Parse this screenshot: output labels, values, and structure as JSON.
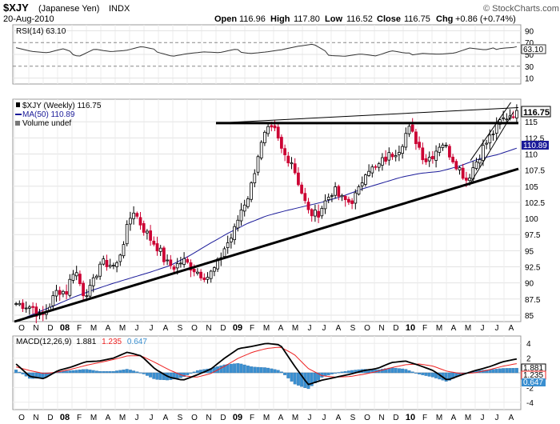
{
  "header": {
    "symbol": "$XJY",
    "name": "(Japanese Yen)",
    "exchange": "INDX",
    "date": "20-Aug-2010",
    "open_label": "Open",
    "open": "116.96",
    "high_label": "High",
    "high": "117.80",
    "low_label": "Low",
    "low": "116.52",
    "close_label": "Close",
    "close": "116.75",
    "chg_label": "Chg",
    "chg": "+0.86 (+0.74%)",
    "copyright": "© StockCharts.com"
  },
  "rsi_panel": {
    "label": "RSI(14) 63.10",
    "current_tag": "63.10",
    "ticks": [
      "90",
      "70",
      "50",
      "30",
      "10"
    ]
  },
  "price_panel": {
    "legend_price": "$XJY (Weekly) 116.75",
    "legend_ma": "MA(50) 110.89",
    "legend_volume": "Volume undef",
    "price_tag": "116.75",
    "ma_tag": "110.89"
  },
  "macd_panel": {
    "label_prefix": "MACD(12,26,9)",
    "v1": "1.881",
    "v2": "1.235",
    "v3": "0.647",
    "tags": [
      "1.881",
      "1.235",
      "0.647"
    ],
    "ticks": [
      "4",
      "2",
      "0",
      "-2",
      "-4"
    ]
  },
  "colors": {
    "up": "#000000",
    "down": "#cc0033",
    "ma": "#1a1a99",
    "signal": "#ee2222",
    "hist": "#3a8fd0",
    "rsi_fill": "#338833"
  },
  "chart_data": {
    "type": "candlestick",
    "frequency": "weekly",
    "ylim": [
      84,
      118.5
    ],
    "yticks": [
      85,
      87.5,
      90,
      92.5,
      95,
      97.5,
      100,
      102.5,
      105,
      107.5,
      110,
      112.5,
      115
    ],
    "x_month_labels": [
      "O",
      "N",
      "D",
      "08",
      "F",
      "M",
      "A",
      "M",
      "J",
      "J",
      "A",
      "S",
      "O",
      "N",
      "D",
      "09",
      "F",
      "M",
      "A",
      "M",
      "J",
      "J",
      "A",
      "S",
      "O",
      "N",
      "D",
      "10",
      "F",
      "M",
      "A",
      "M",
      "J",
      "J",
      "A"
    ],
    "close_anchors": [
      86.8,
      86.6,
      86.2,
      84.5,
      86.5,
      89.0,
      88.5,
      92.5,
      88.5,
      89.0,
      93.0,
      93.0,
      92.5,
      97.0,
      101.5,
      99.0,
      97.0,
      95.5,
      93.0,
      92.5,
      93.5,
      92.5,
      91.5,
      91.0,
      92.5,
      95.5,
      97.5,
      101.5,
      104.0,
      110.0,
      113.5,
      113.5,
      110.0,
      109.0,
      105.0,
      101.0,
      100.5,
      102.5,
      104.5,
      103.0,
      102.5,
      104.0,
      108.0,
      107.5,
      109.0,
      110.0,
      111.0,
      114.0,
      112.0,
      109.0,
      110.0,
      112.0,
      110.0,
      108.0,
      106.0,
      108.5,
      111.0,
      113.0,
      115.0,
      116.0,
      116.75
    ],
    "ma50_anchors": [
      84.0,
      85.3,
      86.5,
      87.8,
      88.9,
      89.9,
      90.8,
      91.7,
      92.7,
      94.2,
      96.0,
      97.7,
      99.2,
      100.4,
      101.2,
      101.9,
      102.6,
      103.5,
      104.6,
      105.5,
      106.4,
      107.0,
      107.3,
      108.1,
      109.2,
      109.9,
      110.9
    ],
    "rsi_anchors": [
      62,
      55,
      52,
      58,
      48,
      60,
      55,
      56,
      62,
      56,
      48,
      52,
      54,
      52,
      57,
      53,
      55,
      58,
      63,
      66,
      50,
      48,
      51,
      47,
      55,
      50,
      53,
      51,
      52,
      60,
      56,
      62,
      63
    ],
    "macd_anchors": [
      1.2,
      -0.5,
      -0.8,
      0.3,
      0.8,
      1.5,
      1.6,
      2.0,
      2.8,
      2.3,
      0.5,
      -0.6,
      -1.0,
      -0.3,
      0.5,
      2.0,
      3.3,
      3.6,
      4.0,
      3.8,
      1.0,
      -1.6,
      -1.0,
      -0.6,
      -0.2,
      0.3,
      0.6,
      1.4,
      1.6,
      1.0,
      0.3,
      -1.0,
      -0.3,
      0.3,
      0.8,
      1.5,
      1.88
    ],
    "signal_anchors": [
      0.8,
      0.3,
      -0.1,
      0.1,
      0.5,
      1.0,
      1.4,
      1.8,
      2.3,
      2.3,
      1.4,
      0.4,
      -0.4,
      -0.6,
      -0.1,
      0.9,
      2.0,
      2.8,
      3.3,
      3.5,
      2.5,
      0.6,
      -0.4,
      -0.6,
      -0.5,
      -0.2,
      0.2,
      0.7,
      1.1,
      1.2,
      0.9,
      0.2,
      -0.1,
      0.0,
      0.4,
      0.9,
      1.24
    ],
    "trendlines": [
      {
        "name": "rising-support",
        "from": [
          0,
          84.0
        ],
        "to": [
          1,
          107.7
        ]
      },
      {
        "name": "horizontal-resistance",
        "from": [
          0.4,
          114.8
        ],
        "to": [
          1,
          114.8
        ]
      },
      {
        "name": "upper-wedge-line",
        "from": [
          0.4,
          114.8
        ],
        "to": [
          1,
          117.2
        ]
      }
    ]
  }
}
